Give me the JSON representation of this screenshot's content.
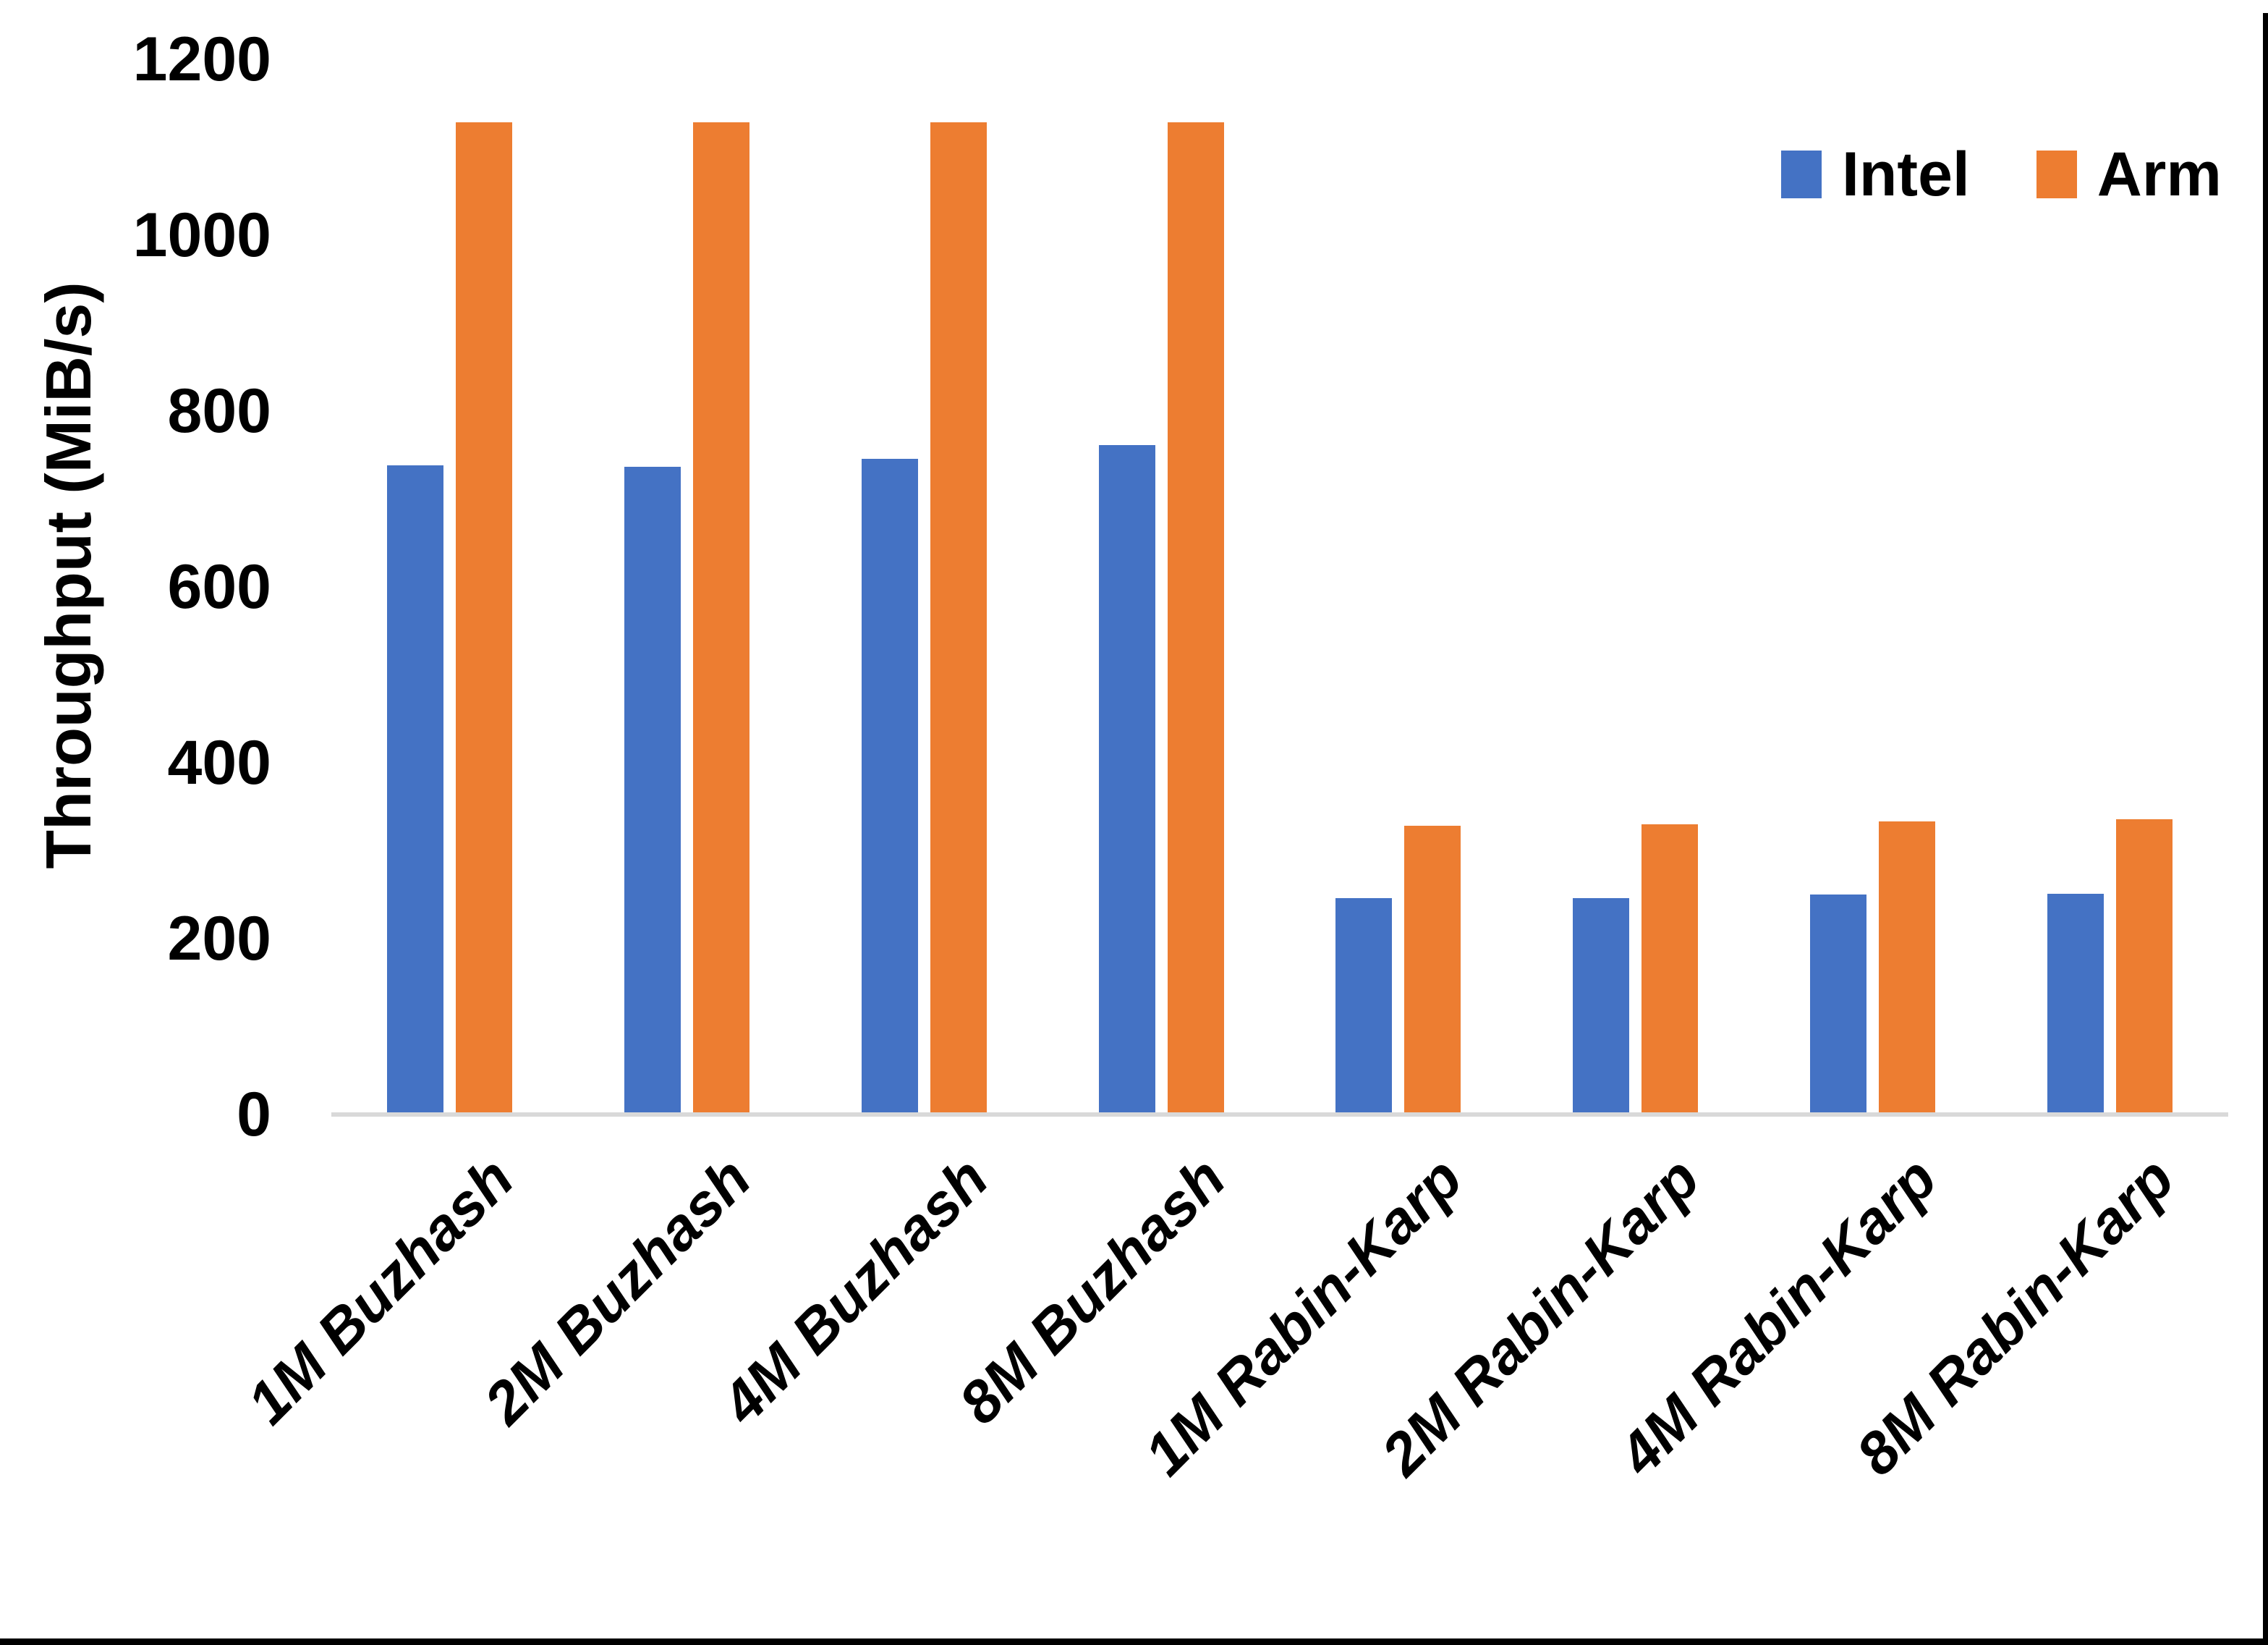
{
  "chart_data": {
    "type": "bar",
    "title": "",
    "ylabel": "Throughput (MiB/s)",
    "xlabel": "",
    "ylim": [
      0,
      1200
    ],
    "yticks": [
      1200,
      1000,
      800,
      600,
      400,
      200,
      0
    ],
    "categories": [
      "1M Buzhash",
      "2M Buzhash",
      "4M Buzhash",
      "8M Buzhash",
      "1M Rabin-Karp",
      "2M Rabin-Karp",
      "4M Rabin-Karp",
      "8M Rabin-Karp"
    ],
    "series": [
      {
        "name": "Intel",
        "color": "#4472C4",
        "values": [
          738,
          737,
          746,
          761,
          246,
          246,
          250,
          251
        ]
      },
      {
        "name": "Arm",
        "color": "#ED7D31",
        "values": [
          1128,
          1128,
          1128,
          1128,
          328,
          330,
          333,
          336
        ]
      }
    ],
    "legend": {
      "position": "top-right",
      "labels": [
        "Intel",
        "Arm"
      ]
    },
    "grid": false,
    "axis_line_color": "#D9D9D9"
  },
  "frame": {
    "border_color": "#000000"
  }
}
